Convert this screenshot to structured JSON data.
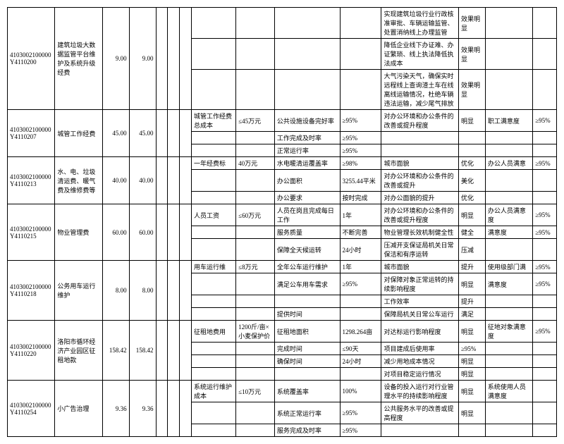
{
  "rows": [
    {
      "code": "4103002100000Y4110200",
      "name": "建筑垃圾大数据监管平台维护及系统升级经费",
      "v1": "9.00",
      "v2": "9.00",
      "subrows": [
        {
          "c7": "",
          "c8": "",
          "c9": "",
          "c10": "",
          "c11": "实现建筑垃圾行业行政核准审批、车辆运输监管、处置消纳线上办理监管",
          "c12": "效果明显",
          "c13": "",
          "c14": ""
        },
        {
          "c7": "",
          "c8": "",
          "c9": "",
          "c10": "",
          "c11": "降低企业线下办证难、办证繁琐、线上执法降低执法成本",
          "c12": "效果明显",
          "c13": "",
          "c14": ""
        },
        {
          "c7": "",
          "c8": "",
          "c9": "",
          "c10": "",
          "c11": "大气污染天气，确保实时远程线上查询渣土车在线离线运输情况，杜绝车辆违法运输，减少尾气排放",
          "c12": "效果明显",
          "c13": "",
          "c14": ""
        }
      ]
    },
    {
      "code": "4103002100000Y4110207",
      "name": "城管工作经费",
      "v1": "45.00",
      "v2": "45.00",
      "subrows": [
        {
          "c7": "城管工作经费总成本",
          "c8": "≤45万元",
          "c9": "公共设施设备完好率",
          "c10": "≥95%",
          "c11": "对办公环境和办公条件的改善或提升程度",
          "c12": "明显",
          "c13": "职工满意度",
          "c14": "≥95%"
        },
        {
          "c7": "",
          "c8": "",
          "c9": "工作完成及时率",
          "c10": "≥95%",
          "c11": "",
          "c12": "",
          "c13": "",
          "c14": ""
        },
        {
          "c7": "",
          "c8": "",
          "c9": "正常运行率",
          "c10": "≥95%",
          "c11": "",
          "c12": "",
          "c13": "",
          "c14": ""
        }
      ]
    },
    {
      "code": "4103002100000Y4110213",
      "name": "水、电、垃圾清运费、暖气费及维修费等",
      "v1": "40.00",
      "v2": "40.00",
      "subrows": [
        {
          "c7": "一年经费标",
          "c8": "40万元",
          "c9": "水电暖清运覆盖率",
          "c10": "≥98%",
          "c11": "城市面貌",
          "c12": "优化",
          "c13": "办公人员满意",
          "c14": "≥95%"
        },
        {
          "c7": "",
          "c8": "",
          "c9": "办公面积",
          "c10": "3255.44平米",
          "c11": "对办公环境和办公条件的改善或提升",
          "c12": "美化",
          "c13": "",
          "c14": ""
        },
        {
          "c7": "",
          "c8": "",
          "c9": "办公要求",
          "c10": "按时完成",
          "c11": "对办公面貌的提升",
          "c12": "优化",
          "c13": "",
          "c14": ""
        }
      ]
    },
    {
      "code": "4103002100000Y4110215",
      "name": "物业管理费",
      "v1": "60.00",
      "v2": "60.00",
      "subrows": [
        {
          "c7": "人员工资",
          "c8": "≤60万元",
          "c9": "人员在岗且完成每日工作",
          "c10": "1年",
          "c11": "对办公环境和办公条件的改善或提升程度",
          "c12": "明显",
          "c13": "办公人员满意度",
          "c14": "≥95%"
        },
        {
          "c7": "",
          "c8": "",
          "c9": "服务质量",
          "c10": "不断完善",
          "c11": "物业管理长效机制健全性",
          "c12": "健全",
          "c13": "满意度",
          "c14": "≥95%"
        },
        {
          "c7": "",
          "c8": "",
          "c9": "保障全天候运转",
          "c10": "24小时",
          "c11": "压减开支保证局机关日常保洁和有序运转",
          "c12": "压减",
          "c13": "",
          "c14": ""
        }
      ]
    },
    {
      "code": "4103002100000Y4110218",
      "name": "公务用车运行维护",
      "v1": "8.00",
      "v2": "8.00",
      "subrows": [
        {
          "c7": "用车运行维",
          "c8": "≤8万元",
          "c9": "全年公车运行维护",
          "c10": "1年",
          "c11": "城市面貌",
          "c12": "提升",
          "c13": "使用级部门满",
          "c14": "≥95%"
        },
        {
          "c7": "",
          "c8": "",
          "c9": "满足公车用车需求",
          "c10": "≥95%",
          "c11": "对保障对象正常运转的持续影响程度",
          "c12": "明显",
          "c13": "满意度",
          "c14": "≥95%"
        },
        {
          "c7": "",
          "c8": "",
          "c9": "",
          "c10": "",
          "c11": "工作效率",
          "c12": "提升",
          "c13": "",
          "c14": ""
        },
        {
          "c7": "",
          "c8": "",
          "c9": "提供时间",
          "c10": "",
          "c11": "保障局机关日常公车运行",
          "c12": "满足",
          "c13": "",
          "c14": ""
        }
      ]
    },
    {
      "code": "4103002100000Y4110220",
      "name": "洛阳市循环经济产业园区征租地款",
      "v1": "158.42",
      "v2": "158.42",
      "subrows": [
        {
          "c7": "征租地费用",
          "c8": "1200斤/亩×小麦保护价",
          "c9": "征租地面积",
          "c10": "1298.264亩",
          "c11": "对达标运行影响程度",
          "c12": "明显",
          "c13": "征地对象满意度",
          "c14": "≥95%"
        },
        {
          "c7": "",
          "c8": "",
          "c9": "完成时间",
          "c10": "≤90天",
          "c11": "项目建成后使用率",
          "c12": "≥95%",
          "c13": "",
          "c14": ""
        },
        {
          "c7": "",
          "c8": "",
          "c9": "确保时间",
          "c10": "24小时",
          "c11": "减少用地成本情况",
          "c12": "明显",
          "c13": "",
          "c14": ""
        },
        {
          "c7": "",
          "c8": "",
          "c9": "",
          "c10": "",
          "c11": "对项目稳定运行情况",
          "c12": "明显",
          "c13": "",
          "c14": ""
        }
      ]
    },
    {
      "code": "4103002100000Y4110254",
      "name": "小广告治理",
      "v1": "9.36",
      "v2": "9.36",
      "subrows": [
        {
          "c7": "系统运行维护成本",
          "c8": "≤10万元",
          "c9": "系统覆盖率",
          "c10": "100%",
          "c11": "设备的投入运行对行业管理水平的持续影响程度",
          "c12": "明显",
          "c13": "系统使用人员满意度",
          "c14": ""
        },
        {
          "c7": "",
          "c8": "",
          "c9": "系统正常运行率",
          "c10": "≥95%",
          "c11": "公共服务水平的改善或提高程度",
          "c12": "明显",
          "c13": "",
          "c14": ""
        },
        {
          "c7": "",
          "c8": "",
          "c9": "服务完成及时率",
          "c10": "≥95%",
          "c11": "",
          "c12": "",
          "c13": "",
          "c14": ""
        }
      ]
    }
  ]
}
